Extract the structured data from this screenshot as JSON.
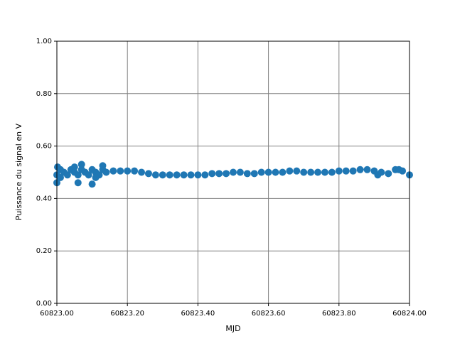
{
  "chart_data": {
    "type": "scatter",
    "xlabel": "MJD",
    "ylabel": "Puissance du signal en V",
    "color": "#1f77b4",
    "grid": true,
    "x": [
      60823.0,
      60823.01,
      60823.02,
      60823.03,
      60823.04,
      60823.05,
      60823.06,
      60823.07,
      60823.08,
      60823.09,
      60823.1,
      60823.11,
      60823.12,
      60823.13,
      60823.14,
      60823.16,
      60823.18,
      60823.2,
      60823.22,
      60823.24,
      60823.26,
      60823.28,
      60823.3,
      60823.32,
      60823.34,
      60823.36,
      60823.38,
      60823.4,
      60823.42,
      60823.44,
      60823.46,
      60823.48,
      60823.5,
      60823.52,
      60823.54,
      60823.56,
      60823.58,
      60823.6,
      60823.62,
      60823.64,
      60823.66,
      60823.68,
      60823.7,
      60823.72,
      60823.74,
      60823.76,
      60823.78,
      60823.8,
      60823.82,
      60823.84,
      60823.86,
      60823.88,
      60823.9,
      60823.91,
      60823.92,
      60823.94,
      60823.96,
      60823.97,
      60823.98,
      60824.0,
      60823.0,
      60823.002,
      60823.06,
      60823.1,
      60823.07,
      60823.13,
      60823.01,
      60823.05,
      60823.11
    ],
    "y": [
      0.49,
      0.51,
      0.5,
      0.49,
      0.51,
      0.5,
      0.49,
      0.51,
      0.5,
      0.49,
      0.51,
      0.5,
      0.49,
      0.51,
      0.5,
      0.505,
      0.505,
      0.505,
      0.505,
      0.5,
      0.495,
      0.49,
      0.49,
      0.49,
      0.49,
      0.49,
      0.49,
      0.49,
      0.49,
      0.495,
      0.495,
      0.495,
      0.5,
      0.5,
      0.495,
      0.495,
      0.5,
      0.5,
      0.5,
      0.5,
      0.505,
      0.505,
      0.5,
      0.5,
      0.5,
      0.5,
      0.5,
      0.505,
      0.505,
      0.505,
      0.51,
      0.51,
      0.505,
      0.49,
      0.5,
      0.495,
      0.51,
      0.51,
      0.505,
      0.49,
      0.46,
      0.52,
      0.46,
      0.455,
      0.53,
      0.525,
      0.48,
      0.52,
      0.48
    ],
    "xlim": [
      60823,
      60824
    ],
    "ylim": [
      0,
      1
    ],
    "xticks": [
      {
        "value": 60823,
        "label": "60823.00"
      },
      {
        "value": 60823.2,
        "label": "60823.20"
      },
      {
        "value": 60823.4,
        "label": "60823.40"
      },
      {
        "value": 60823.6,
        "label": "60823.60"
      },
      {
        "value": 60823.8,
        "label": "60823.80"
      },
      {
        "value": 60824,
        "label": "60824.00"
      }
    ],
    "yticks": [
      {
        "value": 0,
        "label": "0.00"
      },
      {
        "value": 0.2,
        "label": "0.20"
      },
      {
        "value": 0.4,
        "label": "0.40"
      },
      {
        "value": 0.6,
        "label": "0.60"
      },
      {
        "value": 0.8,
        "label": "0.80"
      },
      {
        "value": 1,
        "label": "1.00"
      }
    ]
  }
}
